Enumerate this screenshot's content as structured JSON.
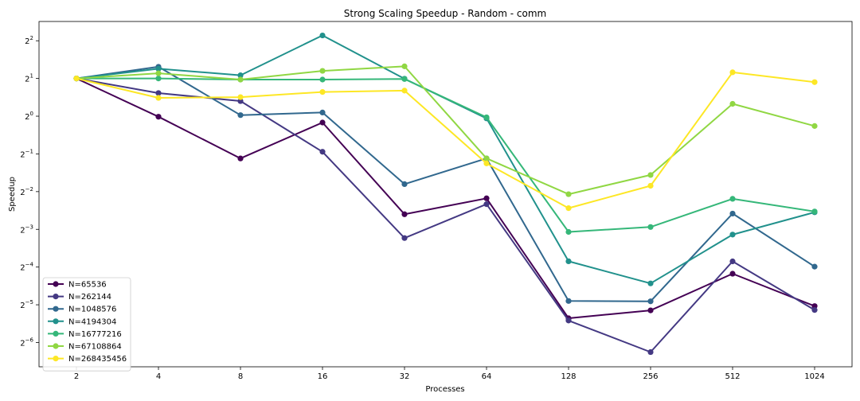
{
  "chart_data": {
    "type": "line",
    "title": "Strong Scaling Speedup - Random - comm",
    "xlabel": "Processes",
    "ylabel": "Speedup",
    "y_scale": "log2",
    "x_scale": "categorical",
    "categories": [
      "2",
      "4",
      "8",
      "16",
      "32",
      "64",
      "128",
      "256",
      "512",
      "1024"
    ],
    "y_ticks": [
      {
        "exp": "2",
        "value": 4
      },
      {
        "exp": "1",
        "value": 2
      },
      {
        "exp": "0",
        "value": 1
      },
      {
        "exp": "−1",
        "value": 0.5
      },
      {
        "exp": "−2",
        "value": 0.25
      },
      {
        "exp": "−3",
        "value": 0.125
      },
      {
        "exp": "−4",
        "value": 0.0625
      },
      {
        "exp": "−5",
        "value": 0.03125
      },
      {
        "exp": "−6",
        "value": 0.015625
      }
    ],
    "y_tick_base": "2",
    "ylim": [
      0.01,
      5.7
    ],
    "grid": false,
    "legend_position": "lower-left",
    "series": [
      {
        "name": "N=65536",
        "color": "#440154",
        "values": [
          2.0,
          0.99,
          0.46,
          0.89,
          0.165,
          0.221,
          0.0244,
          0.0282,
          0.0553,
          0.0305
        ]
      },
      {
        "name": "N=262144",
        "color": "#443983",
        "values": [
          2.0,
          1.53,
          1.32,
          0.52,
          0.1065,
          0.1985,
          0.0234,
          0.0131,
          0.0694,
          0.0284
        ]
      },
      {
        "name": "N=1048576",
        "color": "#31688e",
        "values": [
          2.0,
          2.48,
          1.02,
          1.07,
          0.287,
          0.46,
          0.0335,
          0.0333,
          0.167,
          0.063
        ]
      },
      {
        "name": "N=4194304",
        "color": "#21918c",
        "values": [
          2.0,
          2.39,
          2.12,
          4.41,
          1.99,
          0.96,
          0.0695,
          0.0463,
          0.1135,
          0.171
        ]
      },
      {
        "name": "N=16777216",
        "color": "#35b779",
        "values": [
          2.0,
          2.0,
          1.96,
          1.96,
          1.98,
          0.98,
          0.1192,
          0.1305,
          0.219,
          0.1735
        ]
      },
      {
        "name": "N=67108864",
        "color": "#90d743",
        "values": [
          2.0,
          2.2,
          1.96,
          2.3,
          2.5,
          0.46,
          0.2385,
          0.3395,
          1.255,
          0.835
        ]
      },
      {
        "name": "N=268435456",
        "color": "#fde725",
        "values": [
          2.0,
          1.4,
          1.42,
          1.56,
          1.6,
          0.42,
          0.1845,
          0.2785,
          2.24,
          1.87
        ]
      }
    ]
  }
}
